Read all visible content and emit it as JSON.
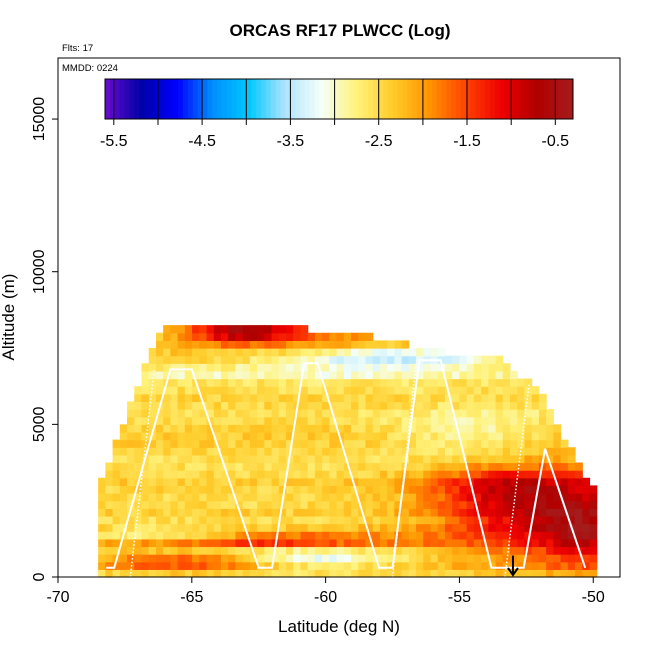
{
  "chart_data": {
    "type": "heatmap",
    "title": "ORCAS RF17 PLWCC (Log)",
    "flights_label": "Flts: 17",
    "date_label": "MMDD: 0224",
    "xlabel": "Latitude (deg N)",
    "ylabel": "Altitude (m)",
    "xlim": [
      -70,
      -49
    ],
    "ylim": [
      0,
      17000
    ],
    "x_ticks": [
      -70,
      -65,
      -60,
      -55,
      -50
    ],
    "x_tick_labels": [
      "-70",
      "-65",
      "-60",
      "-55",
      "-50"
    ],
    "y_ticks": [
      0,
      5000,
      10000,
      15000
    ],
    "y_tick_labels": [
      "0",
      "5000",
      "10000",
      "15000"
    ],
    "colorbar": {
      "range": [
        -5.6,
        -0.3
      ],
      "ticks": [
        -5.5,
        -4.5,
        -3.5,
        -2.5,
        -1.5,
        -0.5
      ],
      "tick_labels": [
        "-5.5",
        "-4.5",
        "-3.5",
        "-2.5",
        "-1.5",
        "-0.5"
      ],
      "colors": [
        "#6a0dcc",
        "#0000a8",
        "#0000ff",
        "#0090ff",
        "#00c8ff",
        "#b0e4ff",
        "#f4fff8",
        "#fff27a",
        "#ffcc2a",
        "#ff9400",
        "#ff4400",
        "#ee0000",
        "#b00000",
        "#a51c1c"
      ]
    },
    "field": {
      "lat_min": -68.5,
      "lat_max": -49.8,
      "top_profile": {
        "lat": [
          -68.5,
          -66.2,
          -63.0,
          -58.5,
          -56.0,
          -53.5,
          -52.0,
          -50.4,
          -49.8
        ],
        "alt": [
          2800,
          8000,
          8200,
          7800,
          7300,
          7000,
          6000,
          3300,
          2500
        ]
      },
      "base_level": -2.45,
      "features": [
        {
          "lat": -51.8,
          "alt": 2100,
          "sigma_lat": 2.8,
          "sigma_alt": 1100,
          "delta": 1.55
        },
        {
          "lat": -53.5,
          "alt": 3000,
          "sigma_lat": 2.0,
          "sigma_alt": 500,
          "delta": 0.7
        },
        {
          "lat": -50.3,
          "alt": 1400,
          "sigma_lat": 1.0,
          "sigma_alt": 900,
          "delta": 0.8
        },
        {
          "lat": -63.0,
          "alt": 1200,
          "sigma_lat": 4.5,
          "sigma_alt": 160,
          "delta": 1.3
        },
        {
          "lat": -60.5,
          "alt": 650,
          "sigma_lat": 2.0,
          "sigma_alt": 250,
          "delta": -0.7
        },
        {
          "lat": -65.5,
          "alt": 500,
          "sigma_lat": 2.5,
          "sigma_alt": 200,
          "delta": 1.0
        },
        {
          "lat": -57.5,
          "alt": 7200,
          "sigma_lat": 3.0,
          "sigma_alt": 250,
          "delta": -1.1
        },
        {
          "lat": -63.2,
          "alt": 8050,
          "sigma_lat": 1.4,
          "sigma_alt": 250,
          "delta": 1.6
        },
        {
          "lat": -61.0,
          "alt": 6700,
          "sigma_lat": 7.0,
          "sigma_alt": 200,
          "delta": -0.45
        },
        {
          "lat": -54.5,
          "alt": 4700,
          "sigma_lat": 2.0,
          "sigma_alt": 600,
          "delta": -0.5
        },
        {
          "lat": -60.5,
          "alt": 7900,
          "sigma_lat": 3.0,
          "sigma_alt": 300,
          "delta": 0.7
        },
        {
          "lat": -66.0,
          "alt": 1350,
          "sigma_lat": 2.0,
          "sigma_alt": 180,
          "delta": -0.9
        }
      ]
    },
    "flight_track": {
      "lat": [
        -68.2,
        -67.9,
        -65.8,
        -65.0,
        -62.5,
        -62.0,
        -60.8,
        -60.3,
        -58.0,
        -57.5,
        -56.5,
        -55.7,
        -53.8,
        -52.6,
        -51.8,
        -50.3
      ],
      "alt": [
        300,
        300,
        6800,
        6800,
        300,
        300,
        7000,
        7000,
        300,
        300,
        7100,
        7100,
        300,
        300,
        4200,
        300
      ]
    },
    "dropsondes": [
      {
        "lat": -66.4,
        "top": 6800
      },
      {
        "lat": -56.6,
        "top": 7100
      },
      {
        "lat": -52.4,
        "top": 6300
      }
    ],
    "aircraft_marker": {
      "lat": -53.0,
      "alt_top": 700
    }
  }
}
